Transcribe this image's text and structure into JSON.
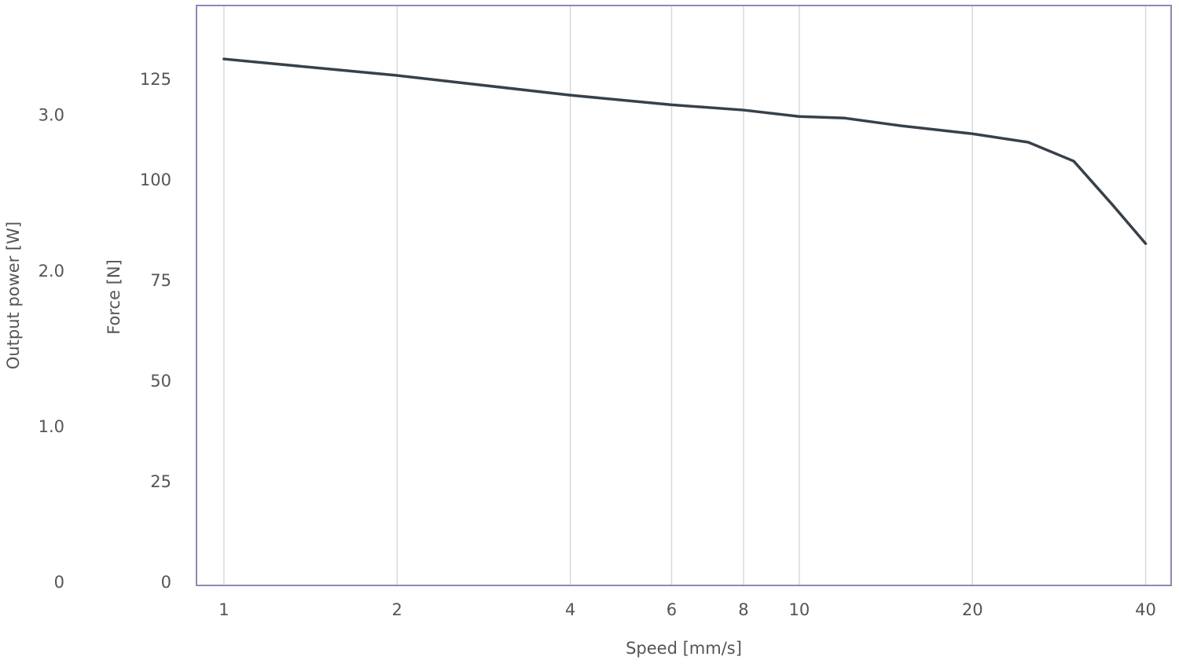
{
  "chart_data": {
    "type": "line",
    "xlabel": "Speed [mm/s]",
    "ylabel": "Force [N]",
    "y2label": "Output power [W]",
    "xscale": "log",
    "x": [
      1,
      2,
      4,
      6,
      8,
      10,
      12,
      15,
      20,
      25,
      30,
      35,
      40
    ],
    "series": [
      {
        "name": "Force",
        "color": "#37414a",
        "values": [
          130.3,
          126.2,
          121.3,
          118.9,
          117.6,
          116.0,
          115.6,
          113.7,
          111.7,
          109.6,
          104.9,
          94.1,
          84.4
        ]
      }
    ],
    "xlim": [
      0.896,
      44.3
    ],
    "xticks": [
      1,
      2,
      4,
      6,
      8,
      10,
      20,
      40
    ],
    "ylim": [
      -0.6,
      143.6
    ],
    "yticks": [
      0,
      25,
      50,
      75,
      100,
      125
    ],
    "y2lim": [
      -0.015,
      3.71
    ],
    "y2ticks": [
      0,
      {
        "value": 1,
        "label": "1.0"
      },
      {
        "value": 2,
        "label": "2.0"
      },
      {
        "value": 3,
        "label": "3.0"
      }
    ],
    "grid": true
  }
}
